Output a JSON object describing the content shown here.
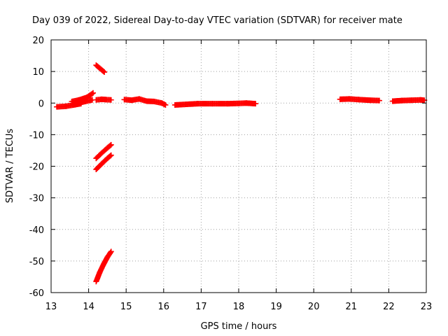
{
  "chart_data": {
    "type": "scatter",
    "title": "Day 039 of 2022, Sidereal Day-to-day VTEC variation (SDTVAR) for receiver mate",
    "xlabel": "GPS time / hours",
    "ylabel": "SDTVAR / TECUs",
    "xlim": [
      13,
      23
    ],
    "ylim": [
      -60,
      20
    ],
    "x_ticks": [
      "13",
      "14",
      "15",
      "16",
      "17",
      "18",
      "19",
      "20",
      "21",
      "22",
      "23"
    ],
    "y_ticks": [
      "20",
      "10",
      "0",
      "-10",
      "-20",
      "-30",
      "-40",
      "-50",
      "-60"
    ],
    "grid": true,
    "marker": "plus",
    "series_color": "#ff0000",
    "segments": [
      {
        "x": [
          13.15,
          13.4,
          13.6,
          13.8
        ],
        "y": [
          -1.2,
          -1.0,
          -0.6,
          -0.2
        ]
      },
      {
        "x": [
          13.55,
          13.75,
          13.95,
          14.05,
          14.12
        ],
        "y": [
          0.5,
          1.0,
          1.8,
          2.6,
          3.2
        ]
      },
      {
        "x": [
          13.6,
          13.8,
          13.95,
          14.1
        ],
        "y": [
          -0.3,
          0.2,
          0.6,
          1.0
        ]
      },
      {
        "x": [
          14.2,
          14.35,
          14.45,
          14.6
        ],
        "y": [
          1.0,
          1.2,
          1.1,
          1.0
        ]
      },
      {
        "x": [
          14.2,
          14.3,
          14.42
        ],
        "y": [
          12.0,
          11.0,
          9.8
        ]
      },
      {
        "x": [
          14.2,
          14.35,
          14.5,
          14.6
        ],
        "y": [
          -17.5,
          -15.8,
          -14.2,
          -13.2
        ]
      },
      {
        "x": [
          14.2,
          14.35,
          14.5,
          14.6
        ],
        "y": [
          -21.0,
          -19.2,
          -17.5,
          -16.5
        ]
      },
      {
        "x": [
          14.2,
          14.3,
          14.4,
          14.5,
          14.6
        ],
        "y": [
          -56.5,
          -53.5,
          -51.0,
          -48.8,
          -47.0
        ]
      },
      {
        "x": [
          14.95,
          15.15,
          15.35,
          15.55,
          15.75,
          15.95,
          16.05
        ],
        "y": [
          1.1,
          0.9,
          1.3,
          0.6,
          0.5,
          0.0,
          -0.6
        ]
      },
      {
        "x": [
          16.3,
          16.6,
          16.9,
          17.3,
          17.7,
          18.0,
          18.2,
          18.45
        ],
        "y": [
          -0.6,
          -0.4,
          -0.2,
          -0.2,
          -0.2,
          -0.1,
          0.0,
          -0.2
        ]
      },
      {
        "x": [
          20.7,
          20.95,
          21.2,
          21.5,
          21.75
        ],
        "y": [
          1.2,
          1.3,
          1.1,
          0.9,
          0.8
        ]
      },
      {
        "x": [
          22.1,
          22.35,
          22.6,
          22.85,
          22.95
        ],
        "y": [
          0.6,
          0.8,
          0.9,
          1.0,
          0.9
        ]
      }
    ]
  }
}
